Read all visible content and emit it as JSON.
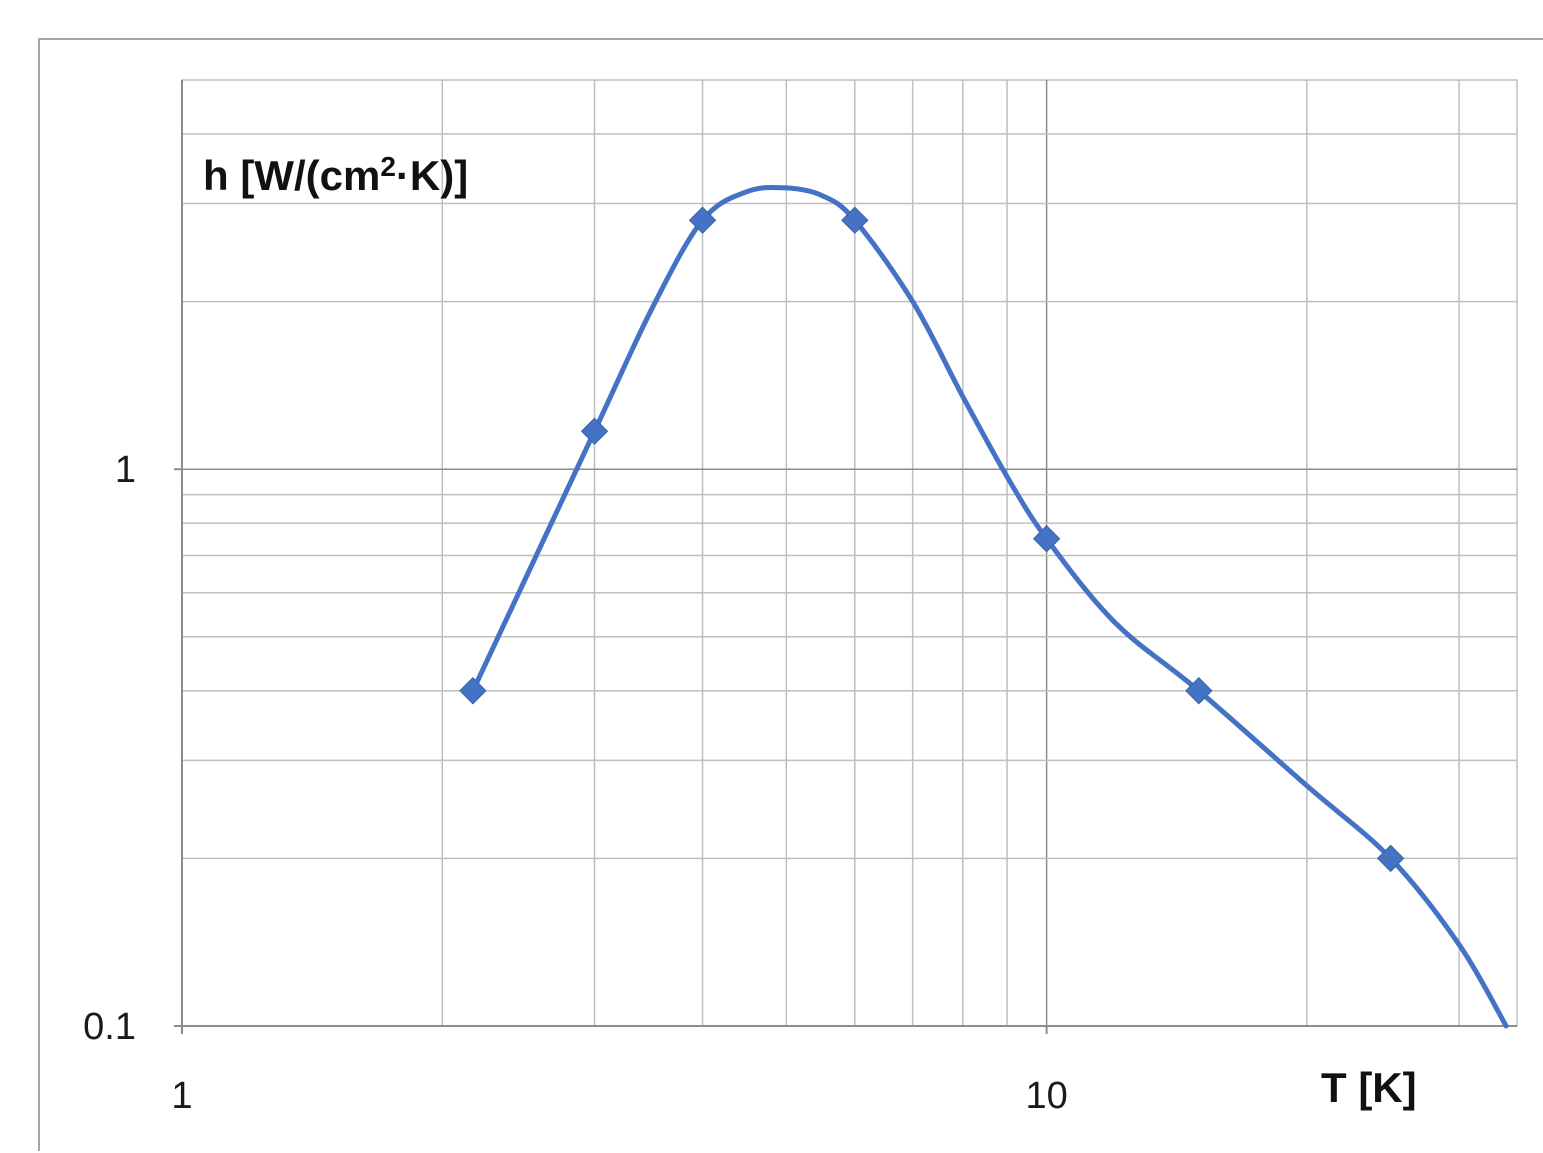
{
  "chart_data": {
    "type": "line",
    "x_scale": "log",
    "y_scale": "log",
    "xlim": [
      1,
      35
    ],
    "ylim": [
      0.1,
      5
    ],
    "x_ticks": [
      1,
      10
    ],
    "x_tick_labels": [
      "1",
      "10"
    ],
    "y_ticks": [
      0.1,
      1
    ],
    "y_tick_labels": [
      "0.1",
      "1"
    ],
    "ylabel": "h  [W/(cm",
    "ylabel_superscript": "2",
    "ylabel_suffix": "·K)]",
    "xlabel": "T [K]",
    "grid": true,
    "line_color": "#4472C4",
    "marker": "diamond",
    "series": [
      {
        "points": [
          {
            "x": 2.17,
            "y": 0.4
          },
          {
            "x": 3.0,
            "y": 1.17
          },
          {
            "x": 4.0,
            "y": 2.8
          },
          {
            "x": 6.0,
            "y": 2.8
          },
          {
            "x": 10.0,
            "y": 0.75
          },
          {
            "x": 15.0,
            "y": 0.4
          },
          {
            "x": 25.0,
            "y": 0.2
          }
        ],
        "curve": [
          {
            "x": 2.17,
            "y": 0.4
          },
          {
            "x": 3.0,
            "y": 1.17
          },
          {
            "x": 3.5,
            "y": 1.95
          },
          {
            "x": 4.0,
            "y": 2.8
          },
          {
            "x": 4.5,
            "y": 3.15
          },
          {
            "x": 5.0,
            "y": 3.2
          },
          {
            "x": 5.5,
            "y": 3.1
          },
          {
            "x": 6.0,
            "y": 2.8
          },
          {
            "x": 7.0,
            "y": 2.0
          },
          {
            "x": 8.0,
            "y": 1.35
          },
          {
            "x": 9.0,
            "y": 0.97
          },
          {
            "x": 10.0,
            "y": 0.75
          },
          {
            "x": 12.0,
            "y": 0.53
          },
          {
            "x": 15.0,
            "y": 0.4
          },
          {
            "x": 20.0,
            "y": 0.27
          },
          {
            "x": 25.0,
            "y": 0.2
          },
          {
            "x": 30.0,
            "y": 0.14
          },
          {
            "x": 34.0,
            "y": 0.1
          }
        ]
      }
    ]
  }
}
